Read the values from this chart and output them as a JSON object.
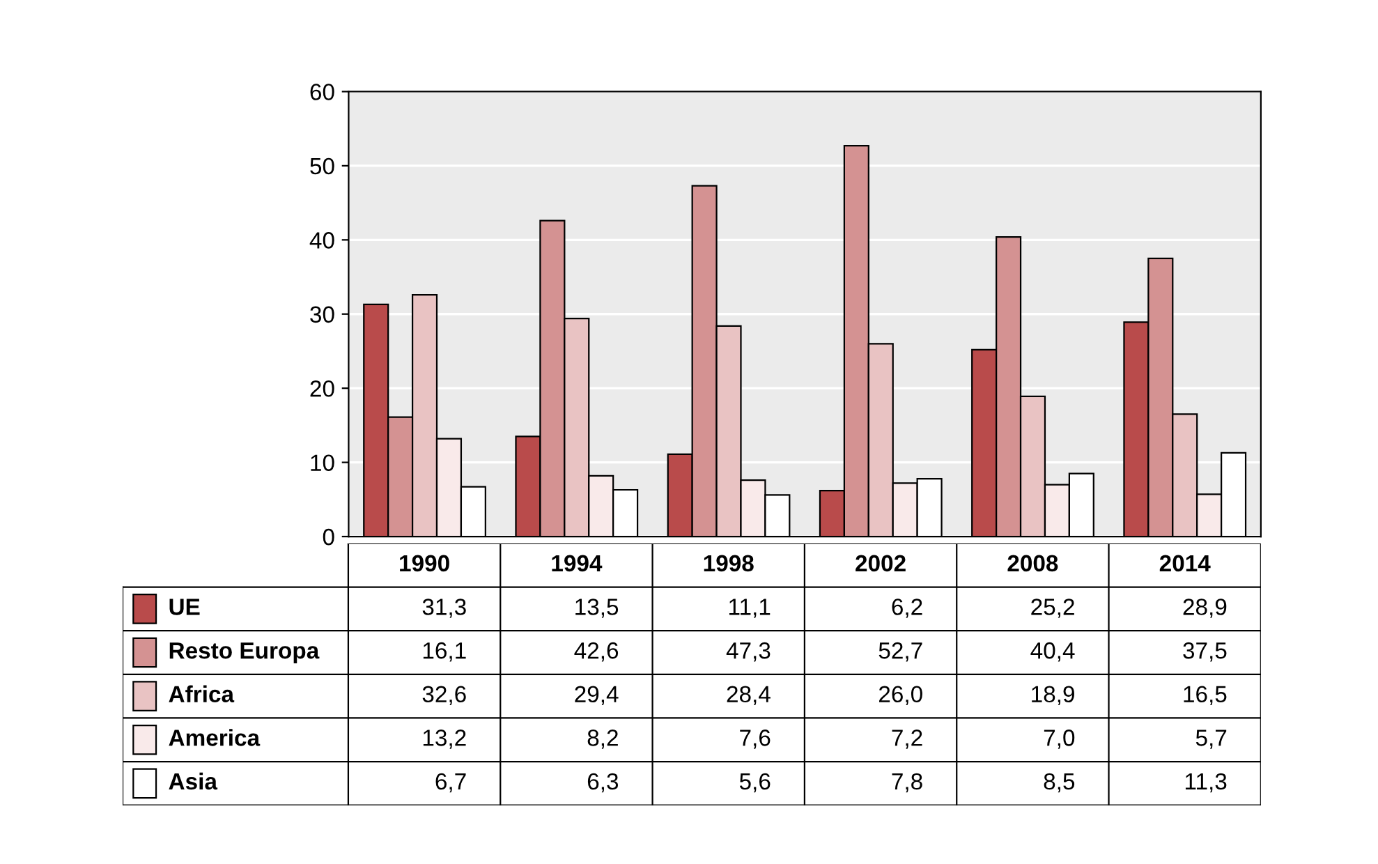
{
  "chart_data": {
    "type": "bar",
    "categories": [
      "1990",
      "1994",
      "1998",
      "2002",
      "2008",
      "2014"
    ],
    "series": [
      {
        "name": "UE",
        "color": "#b94b4b",
        "values": [
          31.3,
          13.5,
          11.1,
          6.2,
          25.2,
          28.9
        ],
        "value_labels": [
          "31,3",
          "13,5",
          "11,1",
          "6,2",
          "25,2",
          "28,9"
        ]
      },
      {
        "name": "Resto Europa",
        "color": "#d49292",
        "values": [
          16.1,
          42.6,
          47.3,
          52.7,
          40.4,
          37.5
        ],
        "value_labels": [
          "16,1",
          "42,6",
          "47,3",
          "52,7",
          "40,4",
          "37,5"
        ]
      },
      {
        "name": "Africa",
        "color": "#e9c3c3",
        "values": [
          32.6,
          29.4,
          28.4,
          26.0,
          18.9,
          16.5
        ],
        "value_labels": [
          "32,6",
          "29,4",
          "28,4",
          "26,0",
          "18,9",
          "16,5"
        ]
      },
      {
        "name": "America",
        "color": "#f9eaea",
        "values": [
          13.2,
          8.2,
          7.6,
          7.2,
          7.0,
          5.7
        ],
        "value_labels": [
          "13,2",
          "8,2",
          "7,6",
          "7,2",
          "7,0",
          "5,7"
        ]
      },
      {
        "name": "Asia",
        "color": "#ffffff",
        "values": [
          6.7,
          6.3,
          5.6,
          7.8,
          8.5,
          11.3
        ],
        "value_labels": [
          "6,7",
          "6,3",
          "5,6",
          "7,8",
          "8,5",
          "11,3"
        ]
      }
    ],
    "ylim": [
      0,
      60
    ],
    "yticks": [
      0,
      10,
      20,
      30,
      40,
      50,
      60
    ],
    "grid": "y",
    "legend": "bottom"
  }
}
